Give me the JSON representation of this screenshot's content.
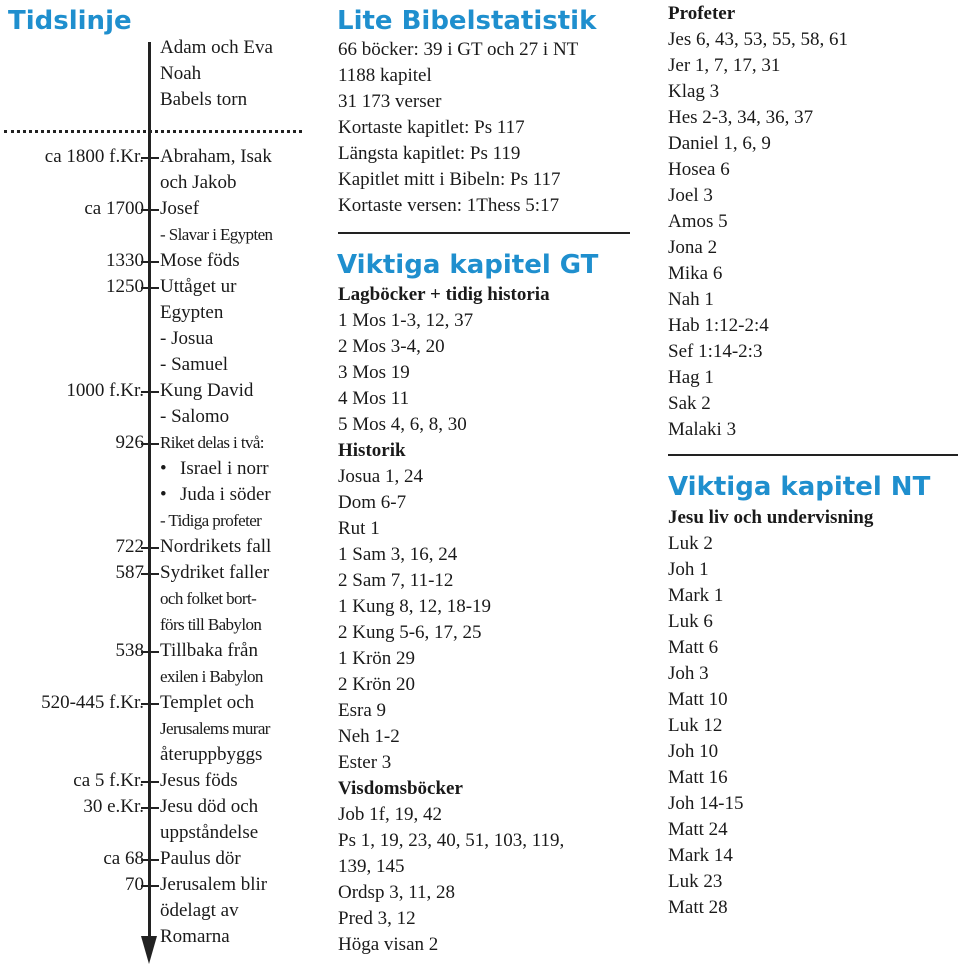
{
  "timeline": {
    "title": "Tidslinje",
    "pre_items": [
      "Adam och Eva",
      "Noah",
      "Babels torn"
    ],
    "items": [
      {
        "date": "ca 1800 f.Kr.",
        "label": "Abraham, Isak",
        "tick": true
      },
      {
        "date": "",
        "label": "och Jakob",
        "tick": false
      },
      {
        "date": "ca 1700",
        "label": "Josef",
        "tick": true
      },
      {
        "date": "",
        "label": "- Slavar i Egypten",
        "tick": false
      },
      {
        "date": "1330",
        "label": "Mose föds",
        "tick": true
      },
      {
        "date": "1250",
        "label": "Uttåget ur",
        "tick": true
      },
      {
        "date": "",
        "label": "Egypten",
        "tick": false
      },
      {
        "date": "",
        "label": "- Josua",
        "tick": false
      },
      {
        "date": "",
        "label": "- Samuel",
        "tick": false
      },
      {
        "date": "1000 f.Kr.",
        "label": "Kung David",
        "tick": true
      },
      {
        "date": "",
        "label": "- Salomo",
        "tick": false
      },
      {
        "date": "926",
        "label": "Riket delas i två:",
        "tick": true
      },
      {
        "date": "",
        "label": "Israel i norr",
        "tick": false,
        "bullet": true
      },
      {
        "date": "",
        "label": "Juda i söder",
        "tick": false,
        "bullet": true
      },
      {
        "date": "",
        "label": "- Tidiga profeter",
        "tick": false
      },
      {
        "date": "722",
        "label": "Nordrikets fall",
        "tick": true
      },
      {
        "date": "587",
        "label": "Sydriket faller",
        "tick": true
      },
      {
        "date": "",
        "label": "och folket bort-",
        "tick": false
      },
      {
        "date": "",
        "label": "förs till Babylon",
        "tick": false
      },
      {
        "date": "538",
        "label": "Tillbaka från",
        "tick": true
      },
      {
        "date": "",
        "label": "exilen i Babylon",
        "tick": false
      },
      {
        "date": "520-445 f.Kr.",
        "label": "Templet och",
        "tick": true
      },
      {
        "date": "",
        "label": "Jerusalems murar",
        "tick": false
      },
      {
        "date": "",
        "label": "återuppbyggs",
        "tick": false
      },
      {
        "date": "ca 5 f.Kr.",
        "label": "Jesus föds",
        "tick": true
      },
      {
        "date": "30 e.Kr.",
        "label": "Jesu död och",
        "tick": true
      },
      {
        "date": "",
        "label": "uppståndelse",
        "tick": false
      },
      {
        "date": "ca 68",
        "label": "Paulus dör",
        "tick": true
      },
      {
        "date": "70",
        "label": "Jerusalem blir",
        "tick": true
      },
      {
        "date": "",
        "label": "ödelagt av",
        "tick": false
      },
      {
        "date": "",
        "label": "Romarna",
        "tick": false
      }
    ]
  },
  "stats": {
    "title": "Lite Bibelstatistik",
    "lines": [
      "66 böcker: 39 i GT och 27 i NT",
      "1188 kapitel",
      "31 173 verser",
      "Kortaste kapitlet: Ps 117",
      "Längsta kapitlet: Ps 119",
      "Kapitlet mitt i Bibeln: Ps 117",
      "Kortaste versen: 1Thess 5:17"
    ]
  },
  "gt": {
    "title": "Viktiga kapitel GT",
    "lines": [
      {
        "text": "Lagböcker + tidig historia",
        "bold": true
      },
      {
        "text": "1 Mos 1-3, 12, 37"
      },
      {
        "text": "2 Mos 3-4, 20"
      },
      {
        "text": "3 Mos 19"
      },
      {
        "text": "4 Mos 11"
      },
      {
        "text": "5 Mos 4, 6, 8, 30"
      },
      {
        "text": "Historik",
        "bold": true
      },
      {
        "text": "Josua 1, 24"
      },
      {
        "text": "Dom 6-7"
      },
      {
        "text": "Rut 1"
      },
      {
        "text": "1 Sam 3, 16, 24"
      },
      {
        "text": "2 Sam 7, 11-12"
      },
      {
        "text": "1 Kung 8, 12, 18-19"
      },
      {
        "text": "2 Kung 5-6, 17, 25"
      },
      {
        "text": "1 Krön 29"
      },
      {
        "text": "2 Krön 20"
      },
      {
        "text": "Esra 9"
      },
      {
        "text": "Neh 1-2"
      },
      {
        "text": "Ester 3"
      },
      {
        "text": "Visdomsböcker",
        "bold": true
      },
      {
        "text": "Job 1f, 19, 42"
      },
      {
        "text": "Ps 1, 19, 23, 40, 51, 103, 119,"
      },
      {
        "text": "139, 145"
      },
      {
        "text": "Ordsp 3, 11, 28"
      },
      {
        "text": "Pred 3, 12"
      },
      {
        "text": "Höga visan 2"
      }
    ]
  },
  "prophets": {
    "title": "Profeter",
    "lines": [
      "Jes 6, 43, 53, 55, 58, 61",
      "Jer 1, 7, 17, 31",
      "Klag 3",
      "Hes 2-3, 34, 36, 37",
      "Daniel 1, 6, 9",
      "Hosea 6",
      "Joel 3",
      "Amos 5",
      "Jona 2",
      "Mika 6",
      "Nah 1",
      "Hab 1:12-2:4",
      "Sef 1:14-2:3",
      "Hag 1",
      "Sak 2",
      "Malaki 3"
    ]
  },
  "nt": {
    "title": "Viktiga kapitel NT",
    "subtitle": "Jesu liv och undervisning",
    "lines": [
      "Luk 2",
      "Joh 1",
      "Mark 1",
      "Luk 6",
      "Matt 6",
      "Joh 3",
      "Matt 10",
      "Luk 12",
      "Joh 10",
      "Matt 16",
      "Joh 14-15",
      "Matt 24",
      "Mark 14",
      "Luk 23",
      "Matt 28"
    ]
  }
}
